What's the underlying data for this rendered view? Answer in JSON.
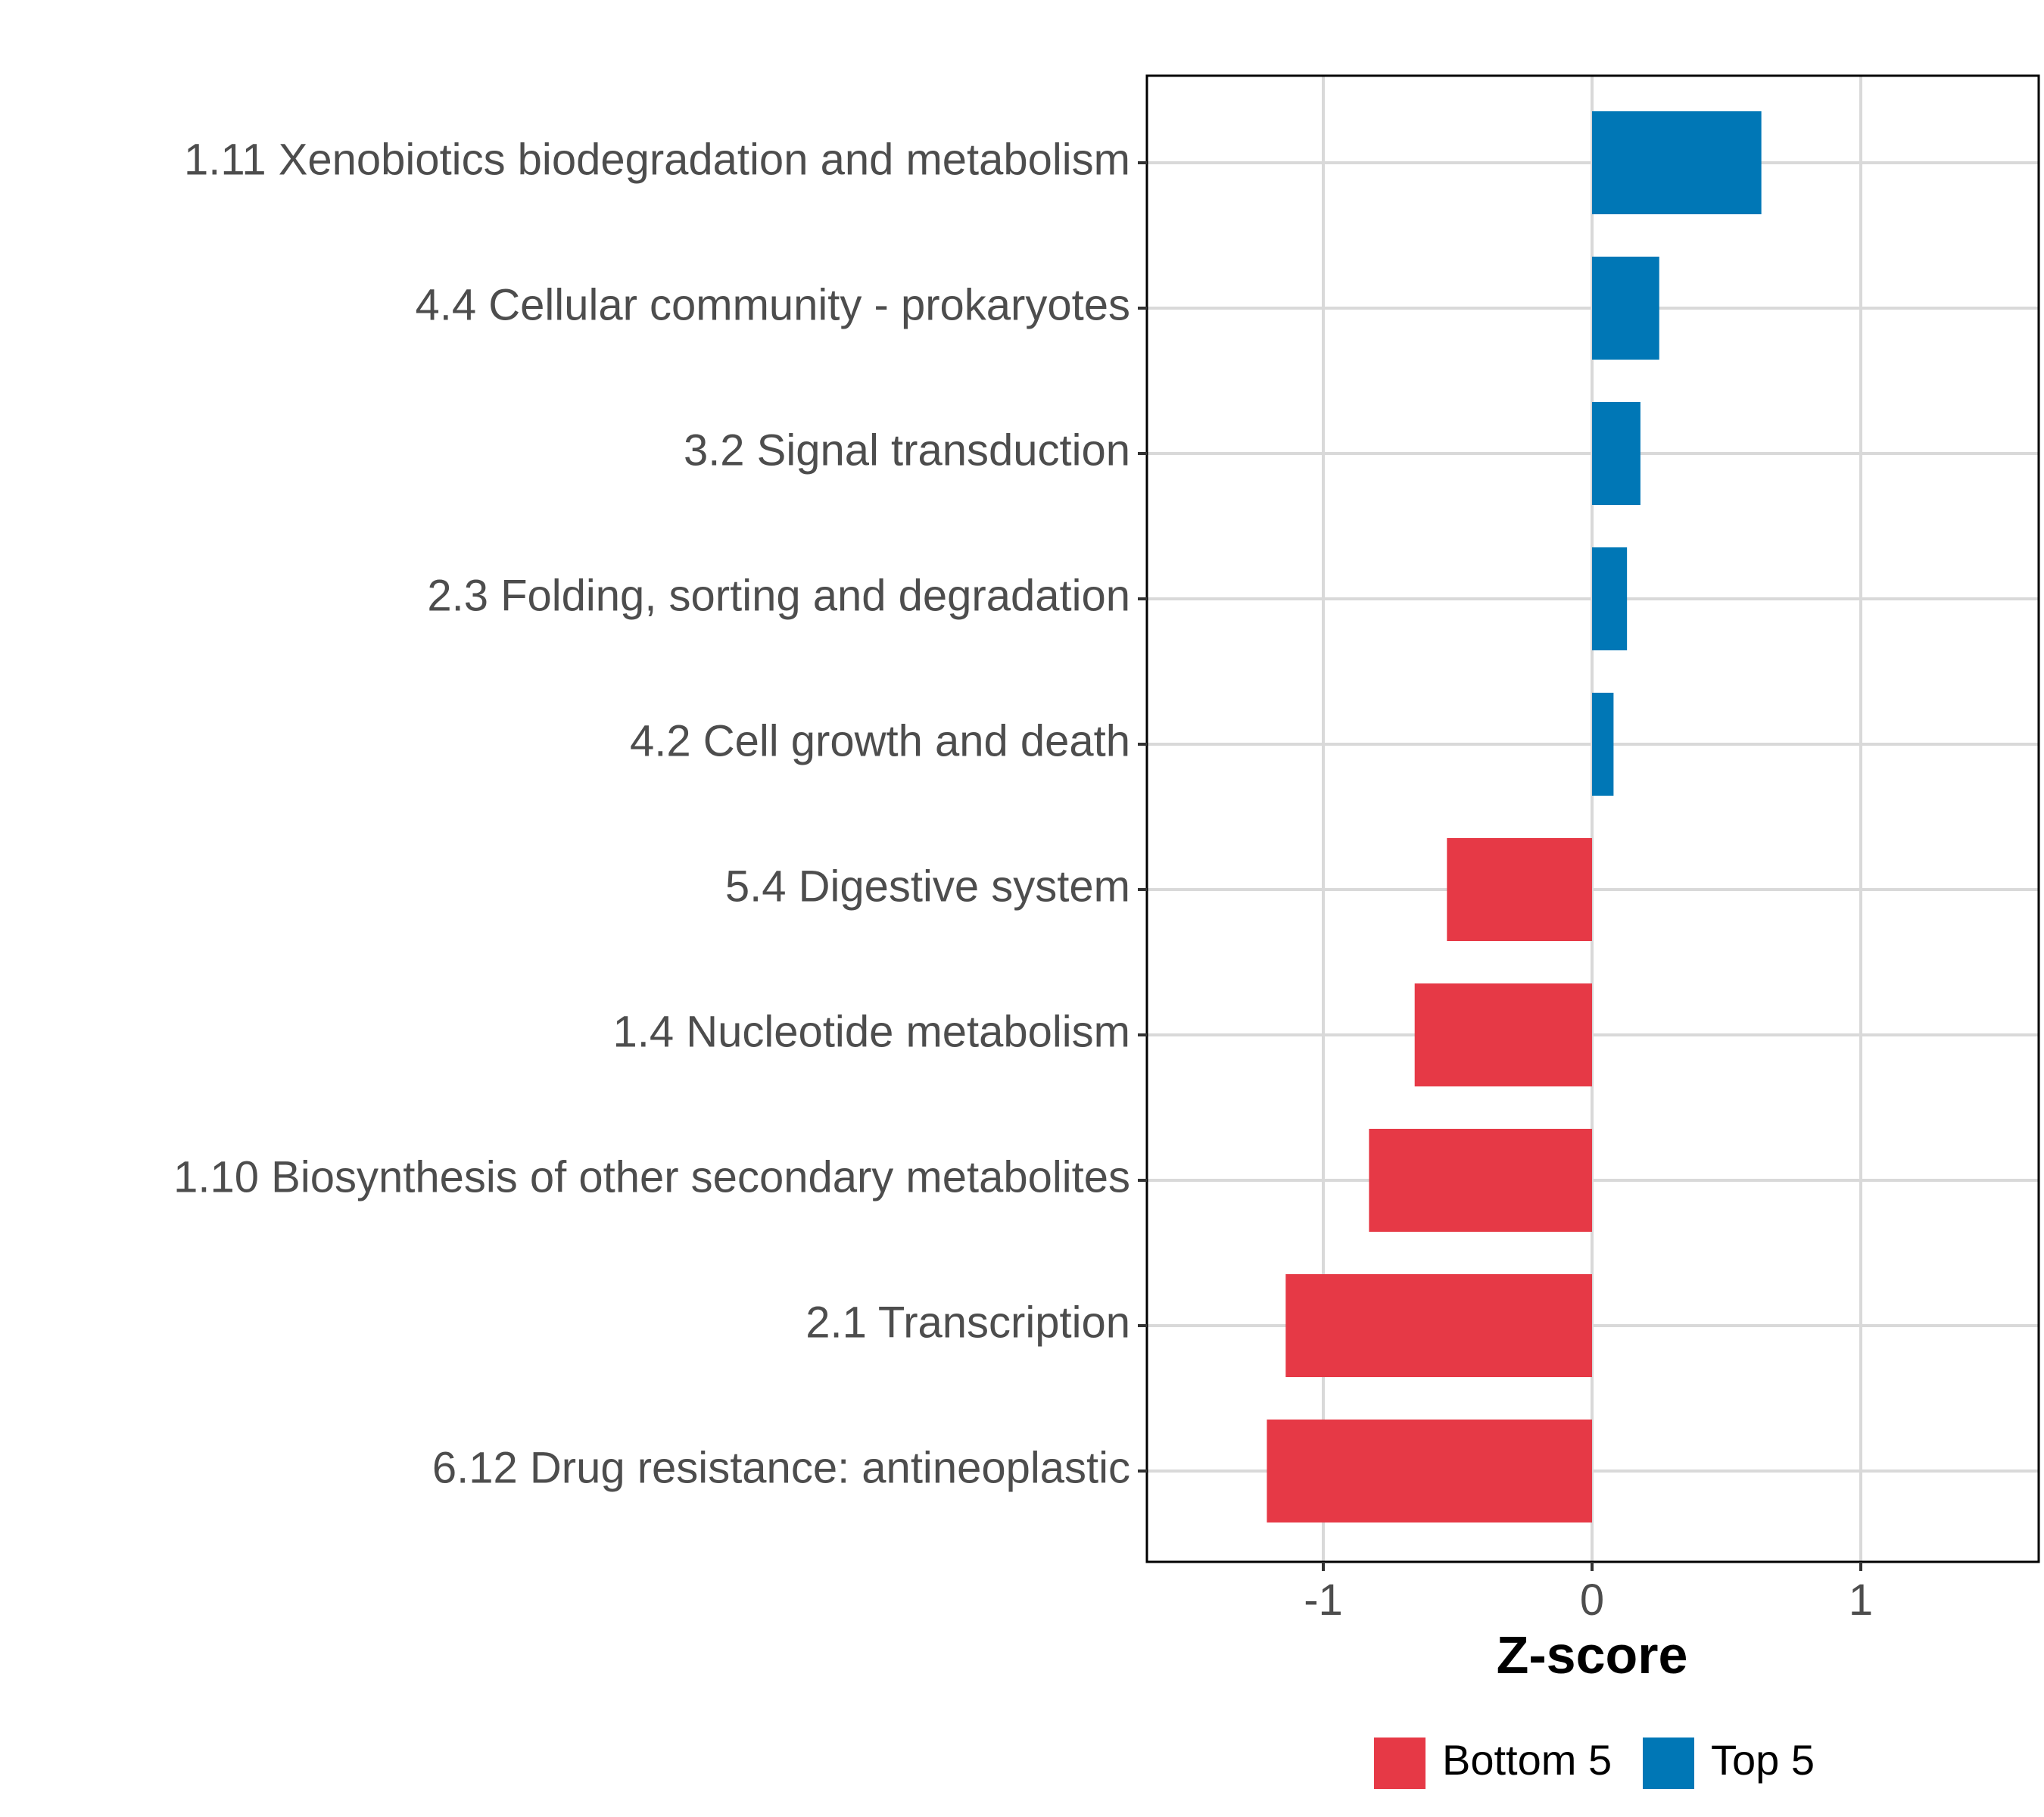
{
  "chart_data": {
    "type": "bar",
    "orientation": "horizontal",
    "title": "",
    "xlabel": "Z-score",
    "ylabel": "",
    "xlim": [
      -1.65,
      1.65
    ],
    "xticks": [
      -1,
      0,
      1
    ],
    "xtick_labels": [
      "-1",
      "0",
      "1"
    ],
    "grid": true,
    "legend_position": "bottom",
    "categories": [
      "1.11 Xenobiotics biodegradation and metabolism",
      "4.4 Cellular community - prokaryotes",
      "3.2 Signal transduction",
      "2.3 Folding, sorting and degradation",
      "4.2 Cell growth and death",
      "5.4 Digestive system",
      "1.4 Nucleotide metabolism",
      "1.10 Biosynthesis of other secondary metabolites",
      "2.1 Transcription",
      "6.12 Drug resistance: antineoplastic"
    ],
    "values": [
      0.63,
      0.25,
      0.18,
      0.13,
      0.08,
      -0.54,
      -0.66,
      -0.83,
      -1.14,
      -1.21
    ],
    "groups": [
      "Top 5",
      "Top 5",
      "Top 5",
      "Top 5",
      "Top 5",
      "Bottom 5",
      "Bottom 5",
      "Bottom 5",
      "Bottom 5",
      "Bottom 5"
    ],
    "legend": [
      {
        "label": "Bottom 5",
        "color": "#e63946"
      },
      {
        "label": "Top 5",
        "color": "#0077b6"
      }
    ]
  }
}
